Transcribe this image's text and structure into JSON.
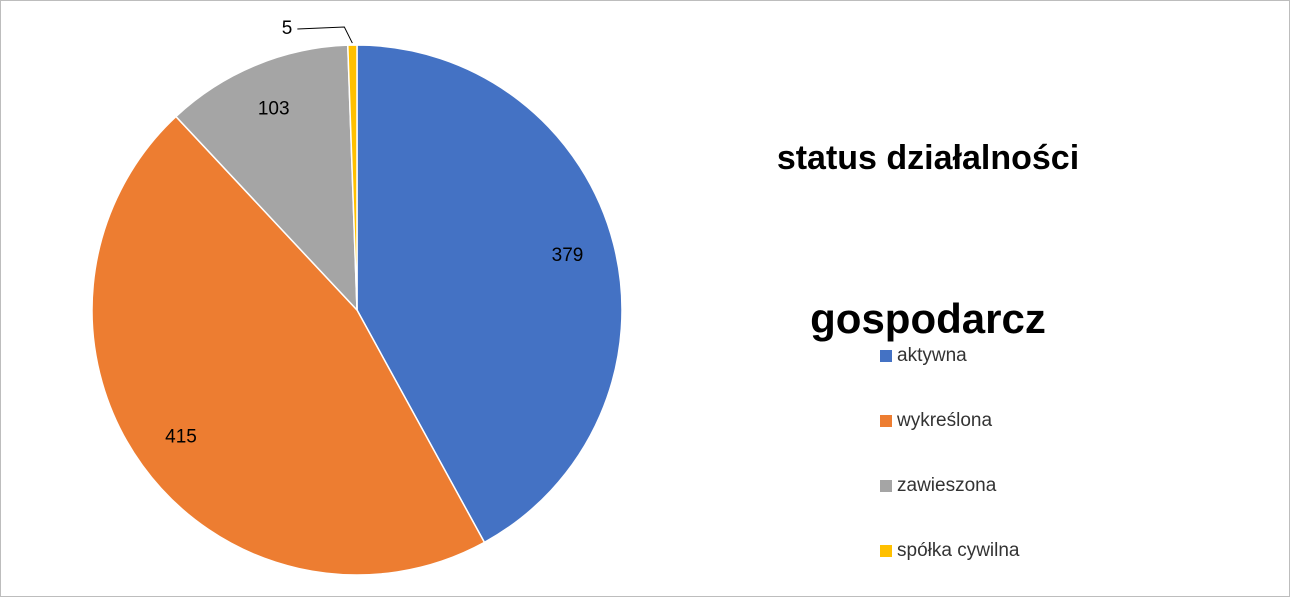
{
  "chart_data": {
    "type": "pie",
    "title": [
      "status działalności",
      "gospodarcz"
    ],
    "categories": [
      "aktywna",
      "wykreślona",
      "zawieszona",
      "spółka cywilna"
    ],
    "values": [
      379,
      415,
      103,
      5
    ],
    "colors": [
      "#4472c4",
      "#ed7d31",
      "#a5a5a5",
      "#ffc000"
    ],
    "legend": "right"
  }
}
